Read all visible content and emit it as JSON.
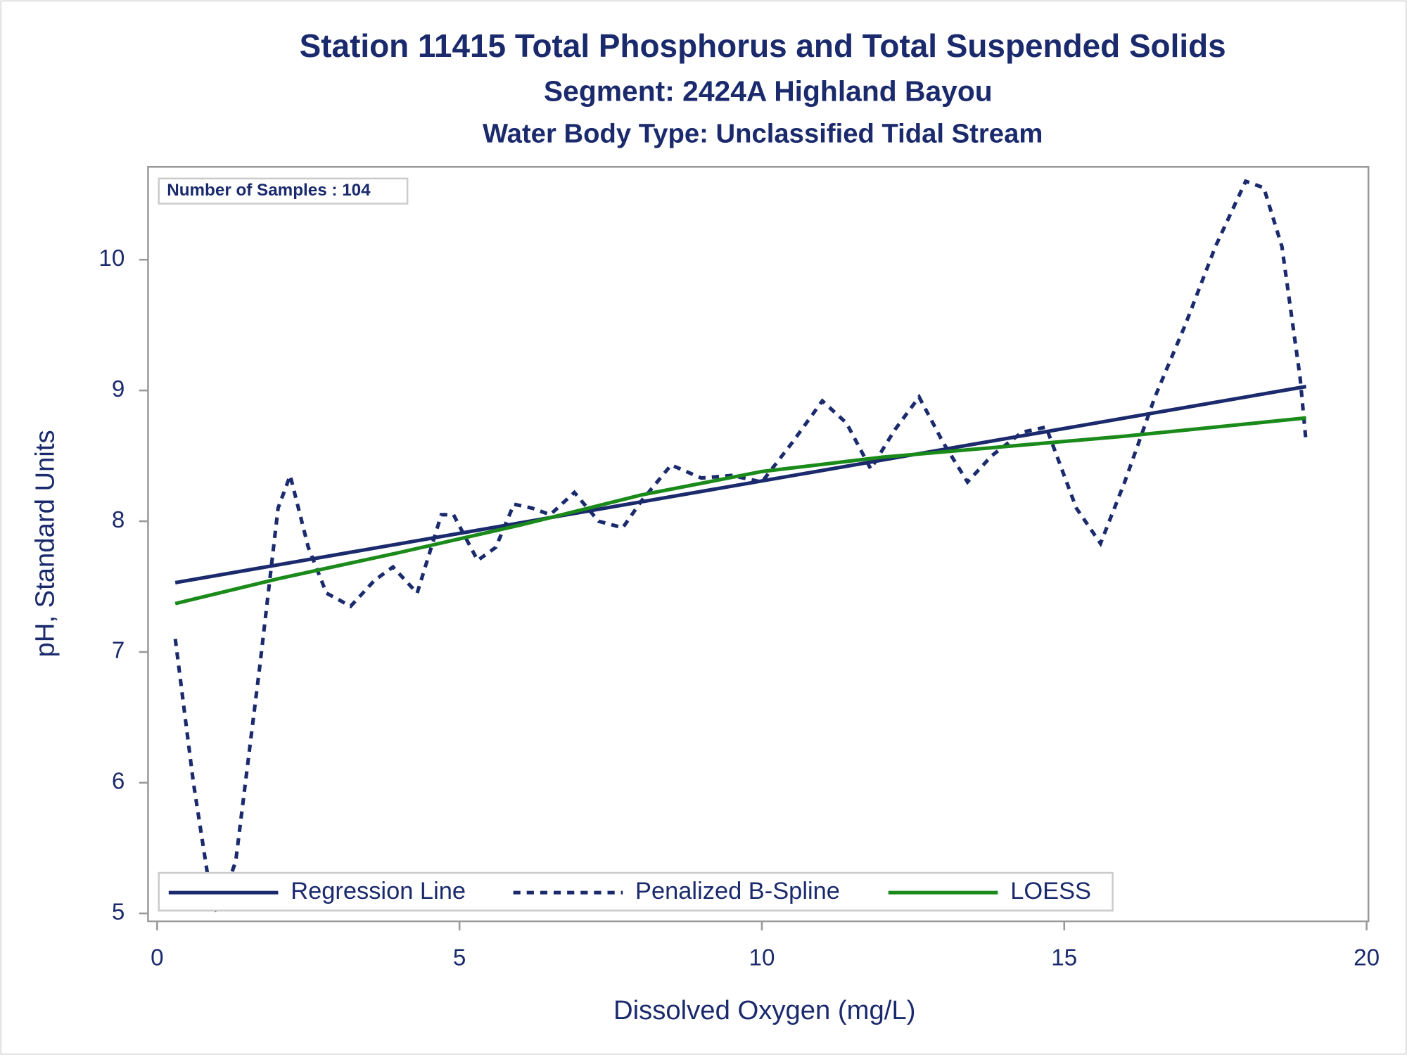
{
  "chart_data": {
    "type": "line",
    "title": "Station 11415  Total Phosphorus and Total Suspended Solids",
    "subtitle": "Segment: 2424A  Highland Bayou",
    "subtitle2": "Water Body Type: Unclassified Tidal Stream",
    "annotation": "Number of Samples : 104",
    "xlabel": "Dissolved Oxygen (mg/L)",
    "ylabel": "pH, Standard Units",
    "xlim": [
      -0.15,
      20.03
    ],
    "ylim": [
      4.94,
      10.71
    ],
    "xticks": [
      0,
      5,
      10,
      15,
      20
    ],
    "yticks": [
      5,
      6,
      7,
      8,
      9,
      10
    ],
    "legend": "bottom",
    "series": [
      {
        "name": "Regression Line",
        "color": "#1a2a6c",
        "style": "solid",
        "x": [
          0.3,
          19.0
        ],
        "values": [
          7.53,
          9.03
        ]
      },
      {
        "name": "Penalized B-Spline",
        "color": "#1a2a6c",
        "style": "dashed",
        "x": [
          0.3,
          0.6,
          0.9,
          1.0,
          1.3,
          1.7,
          2.0,
          2.2,
          2.5,
          2.8,
          3.2,
          3.6,
          3.9,
          4.3,
          4.7,
          4.9,
          5.3,
          5.6,
          5.9,
          6.2,
          6.5,
          6.9,
          7.3,
          7.7,
          8.0,
          8.5,
          9.0,
          9.5,
          10.0,
          10.5,
          11.0,
          11.4,
          11.8,
          12.2,
          12.6,
          13.0,
          13.4,
          13.8,
          14.3,
          14.7,
          15.2,
          15.6,
          16.0,
          16.5,
          17.0,
          17.5,
          18.0,
          18.3,
          18.6,
          18.9,
          19.0
        ],
        "values": [
          7.1,
          6.0,
          5.1,
          5.0,
          5.4,
          6.9,
          8.1,
          8.35,
          7.8,
          7.45,
          7.35,
          7.55,
          7.65,
          7.45,
          8.05,
          8.05,
          7.7,
          7.8,
          8.13,
          8.1,
          8.05,
          8.22,
          8.0,
          7.95,
          8.15,
          8.43,
          8.33,
          8.35,
          8.3,
          8.6,
          8.92,
          8.75,
          8.4,
          8.7,
          8.95,
          8.6,
          8.3,
          8.5,
          8.68,
          8.72,
          8.1,
          7.83,
          8.3,
          8.95,
          9.5,
          10.1,
          10.6,
          10.55,
          10.1,
          9.1,
          8.6
        ]
      },
      {
        "name": "LOESS",
        "color": "#1a8a1a",
        "style": "solid",
        "x": [
          0.3,
          2,
          4,
          6,
          8,
          10,
          12,
          14,
          16,
          19
        ],
        "values": [
          7.37,
          7.56,
          7.76,
          7.97,
          8.2,
          8.38,
          8.49,
          8.57,
          8.65,
          8.79
        ]
      }
    ]
  }
}
